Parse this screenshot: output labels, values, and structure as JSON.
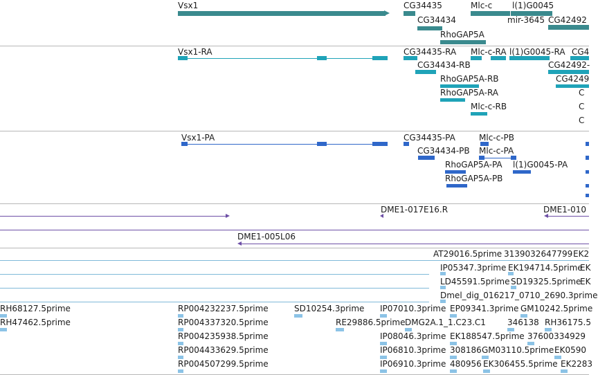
{
  "viewer": {
    "colors": {
      "gene": "#3a8a8e",
      "transcript": "#1fa3b8",
      "protein": "#2f67c9",
      "clone": "#6d4fa6",
      "est_line": "#7fb9d9",
      "est_box": "#8cc3e6",
      "divider": "#b7b7b7"
    },
    "genes_track": {
      "labels": [
        "Vsx1",
        "CG34435",
        "Mlc-c",
        "l(1)G0045",
        "CG34434",
        "mir-3645",
        "CG42492",
        "RhoGAP5A"
      ]
    },
    "transcripts_track": {
      "labels": [
        "Vsx1-RA",
        "CG34435-RA",
        "Mlc-c-RA",
        "l(1)G0045-RA",
        "CG4",
        "CG34434-RB",
        "CG42492-",
        "RhoGAP5A-RB",
        "CG4249",
        "RhoGAP5A-RA",
        "Mlc-c-RB",
        "C",
        "C",
        "C"
      ]
    },
    "proteins_track": {
      "labels": [
        "Vsx1-PA",
        "CG34435-PA",
        "Mlc-c-PB",
        "CG34434-PB",
        "Mlc-c-PA",
        "RhoGAP5A-PA",
        "l(1)G0045-PA",
        "RhoGAP5A-PB"
      ]
    },
    "clones_track": {
      "labels": [
        "DME1-017E16.R",
        "DME1-010",
        "DME1-005L06"
      ]
    },
    "est_track": {
      "labels": [
        "AT29016.5prime",
        "3139032647799",
        "EK2",
        "IP05347.3prime",
        "EK194714.5prime",
        "EK",
        "LD45591.5prime",
        "SD19325.5prime",
        "EK",
        "Dmel_dig_016217_0710_2690.3prime",
        "RH68127.5prime",
        "RP004232237.5prime",
        "SD10254.3prime",
        "IP07010.3prime",
        "EP09341.3prime",
        "GM10242.5prime",
        "RH47462.5prime",
        "RP004337320.5prime",
        "RE29886.5prime",
        "DMG2A.1_1.C23.C1",
        "346138",
        "RH36175.5",
        "RP004235938.5prime",
        "IP08046.3prime",
        "EK188547.5prime",
        "37600334929",
        "RP004433629.5prime",
        "IP06810.3prime",
        "308186",
        "GM03110.5prime",
        "EK0590",
        "RP004507299.5prime",
        "IP06910.3prime",
        "480956",
        "EK306455.5prime",
        "EK2283"
      ]
    }
  }
}
